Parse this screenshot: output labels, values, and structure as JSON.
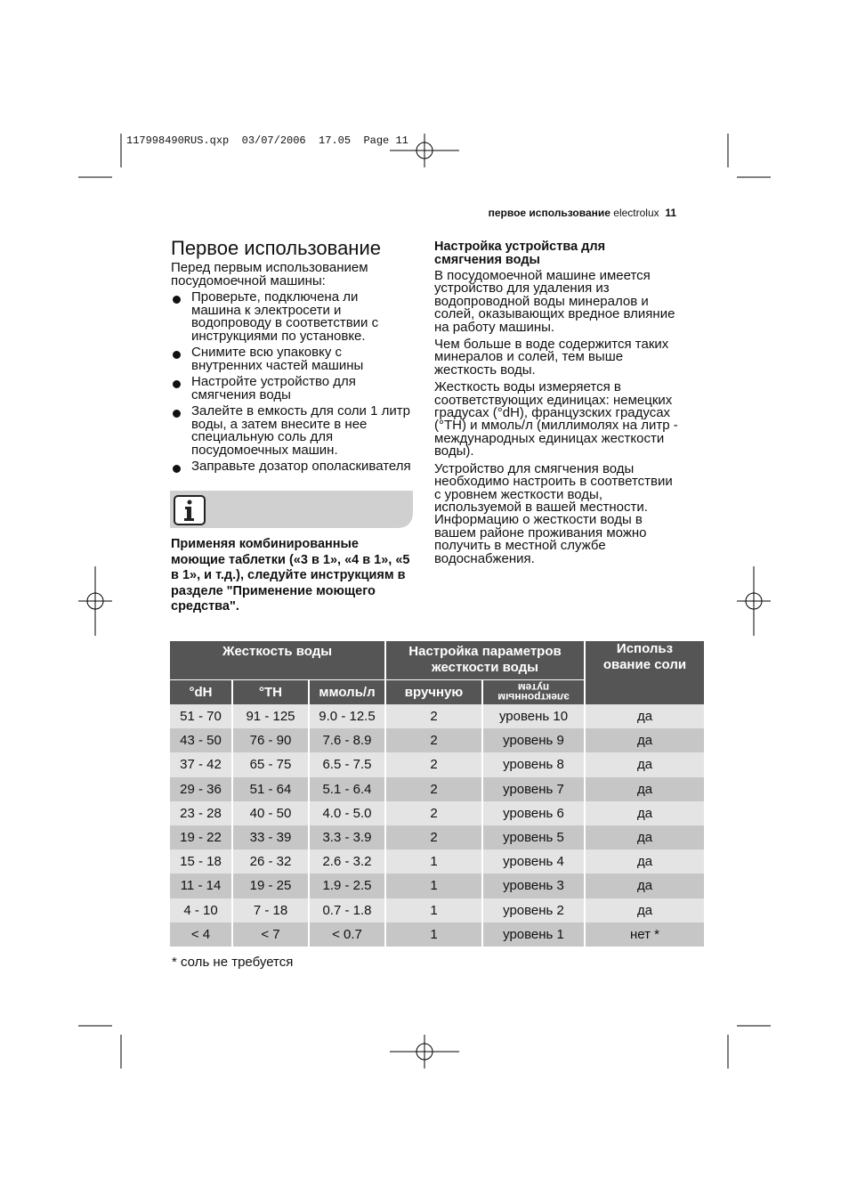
{
  "slug": "117998490RUS.qxp  03/07/2006  17.05  Page 11",
  "header": {
    "section": "первое использование",
    "brand": "electrolux",
    "page": "11"
  },
  "left": {
    "title": "Первое использование",
    "intro": "Перед первым использованием посудомоечной машины:",
    "bullets": [
      "Проверьте, подключена ли машина к электросети и водопроводу в соответствии с инструкциями по установке.",
      "Снимите всю упаковку с внутренних частей машины",
      "Настройте устройство для смягчения воды",
      "Залейте в емкость для соли 1 литр воды, а затем внесите в нее специальную соль для посудомоечных машин.",
      "Заправьте дозатор ополаскивателя"
    ],
    "note": "Применяя комбинированные моющие таблетки («3 в 1», «4 в 1», «5 в 1», и т.д.), следуйте инструкциям в разделе \"Применение моющего средства\"."
  },
  "right": {
    "heading": "Настройка устройства для смягчения воды",
    "paragraphs": [
      "В посудомоечной машине имеется устройство для удаления из водопроводной воды минералов и солей, оказывающих вредное влияние на работу машины.",
      "Чем больше в воде содержится таких минералов и солей, тем выше жесткость воды.",
      "Жесткость воды измеряется в соответствующих единицах: немецких градусах (°dH), французских градусах (°TH) и ммоль/л (миллимолях на литр - международных единицах жесткости воды).",
      "Устройство для смягчения воды необходимо настроить в соответствии с уровнем жесткости воды, используемой в вашей местности. Информацию о жесткости воды в вашем районе проживания можно получить в местной службе водоснабжения."
    ]
  },
  "table": {
    "group_headers": [
      "Жесткость воды",
      "Настройка параметров жесткости воды",
      "Использ ование соли"
    ],
    "sub_headers": [
      "°dH",
      "°TH",
      "ммоль/л",
      "вручную",
      "электронным путем"
    ],
    "rows": [
      [
        "51 - 70",
        "91 - 125",
        "9.0 - 12.5",
        "2",
        "уровень 10",
        "да"
      ],
      [
        "43 - 50",
        "76 - 90",
        "7.6 - 8.9",
        "2",
        "уровень 9",
        "да"
      ],
      [
        "37 - 42",
        "65 - 75",
        "6.5 - 7.5",
        "2",
        "уровень 8",
        "да"
      ],
      [
        "29 - 36",
        "51 - 64",
        "5.1 - 6.4",
        "2",
        "уровень 7",
        "да"
      ],
      [
        "23 - 28",
        "40 - 50",
        "4.0 - 5.0",
        "2",
        "уровень 6",
        "да"
      ],
      [
        "19 - 22",
        "33 - 39",
        "3.3 - 3.9",
        "2",
        "уровень 5",
        "да"
      ],
      [
        "15 - 18",
        "26 - 32",
        "2.6 - 3.2",
        "1",
        "уровень 4",
        "да"
      ],
      [
        "11 - 14",
        "19 - 25",
        "1.9 - 2.5",
        "1",
        "уровень 3",
        "да"
      ],
      [
        "4 - 10",
        "7 - 18",
        "0.7 - 1.8",
        "1",
        "уровень 2",
        "да"
      ],
      [
        "< 4",
        "< 7",
        "< 0.7",
        "1",
        "уровень 1",
        "нет *"
      ]
    ]
  },
  "footnote": "* соль не требуется"
}
